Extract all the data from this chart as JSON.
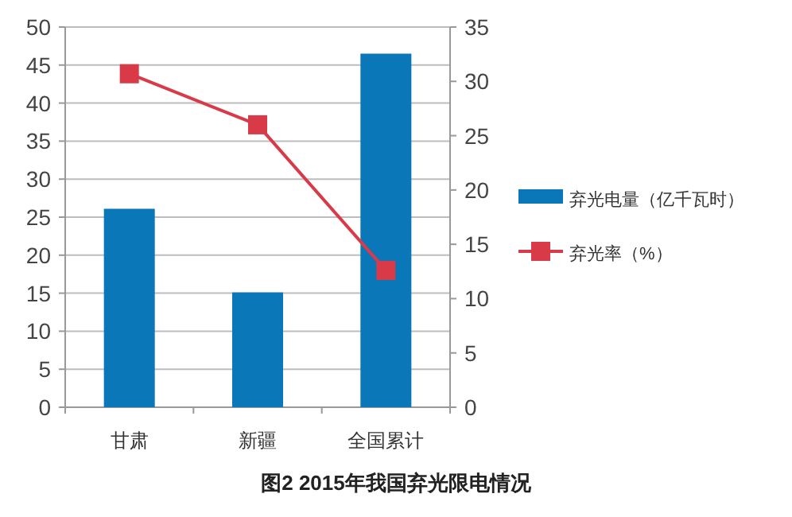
{
  "chart_data": {
    "type": "bar",
    "title": "图2 2015年我国弃光限电情况",
    "categories": [
      "甘肃",
      "新疆",
      "全国累计"
    ],
    "series": [
      {
        "name": "弃光电量（亿千瓦时）",
        "color": "#0a77b8",
        "values": [
          26.1,
          15.1,
          46.5
        ]
      },
      {
        "name": "弃光率（%）",
        "type": "line",
        "axis": "y2",
        "color": "#d93a48",
        "marker": "square",
        "values": [
          30.7,
          26,
          12.6
        ]
      }
    ],
    "ylim": [
      0,
      50
    ],
    "yticks": [
      0,
      5,
      10,
      15,
      20,
      25,
      30,
      35,
      40,
      45,
      50
    ],
    "y2lim": [
      0,
      35
    ],
    "y2ticks": [
      0,
      5,
      10,
      15,
      20,
      25,
      30,
      35
    ],
    "grid": "y",
    "legend": "right"
  }
}
